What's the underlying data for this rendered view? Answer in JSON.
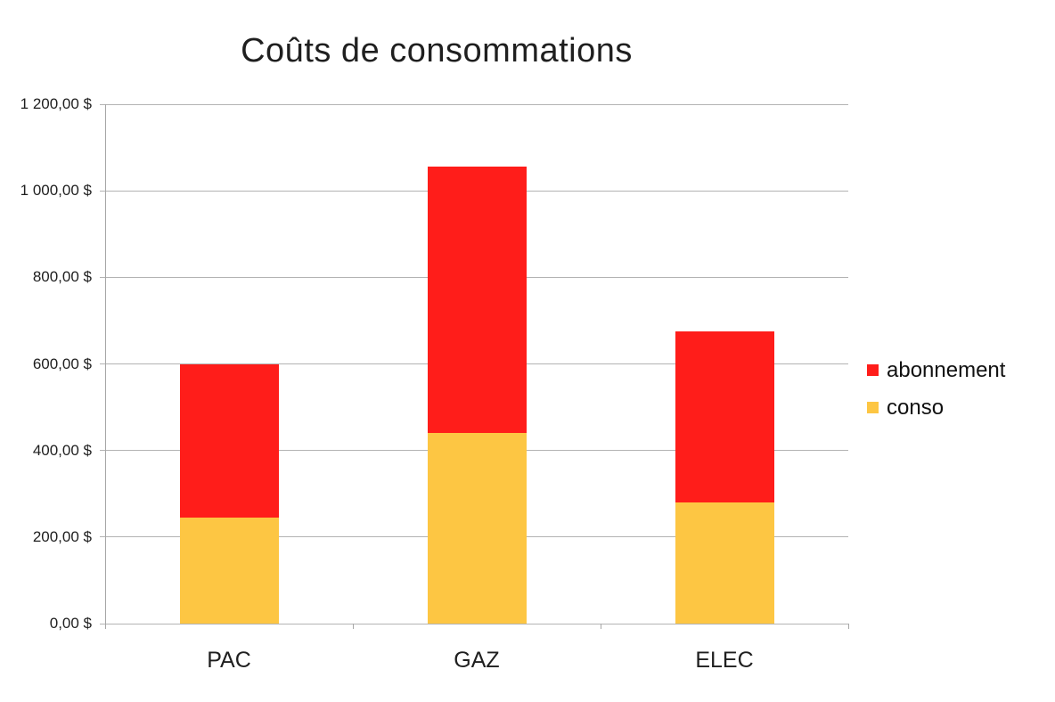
{
  "title": "Coûts de consommations",
  "chart_data": {
    "type": "bar",
    "stacked": true,
    "title": "Coûts de consommations",
    "xlabel": "",
    "ylabel": "",
    "categories": [
      "PAC",
      "GAZ",
      "ELEC"
    ],
    "series": [
      {
        "name": "conso",
        "color": "#FDC643",
        "values": [
          245,
          440,
          280
        ]
      },
      {
        "name": "abonnement",
        "color": "#FF1D1A",
        "values": [
          355,
          615,
          395
        ]
      }
    ],
    "totals": [
      600,
      1055,
      675
    ],
    "ylim": [
      0,
      1200
    ],
    "ytick_step": 200,
    "ytick_labels": [
      "0,00 $",
      "200,00 $",
      "400,00 $",
      "600,00 $",
      "800,00 $",
      "1 000,00 $",
      "1 200,00 $"
    ],
    "grid": true,
    "legend_position": "right"
  },
  "legend": {
    "items": [
      {
        "label": "abonnement",
        "color": "#FF1D1A"
      },
      {
        "label": "conso",
        "color": "#FDC643"
      }
    ]
  },
  "colors": {
    "grid": "#b3b3b3",
    "axis": "#a6a6a6",
    "text": "#1f1f1f",
    "background": "#ffffff",
    "red_series": "#FF1D1A",
    "yellow_series": "#FDC643"
  }
}
